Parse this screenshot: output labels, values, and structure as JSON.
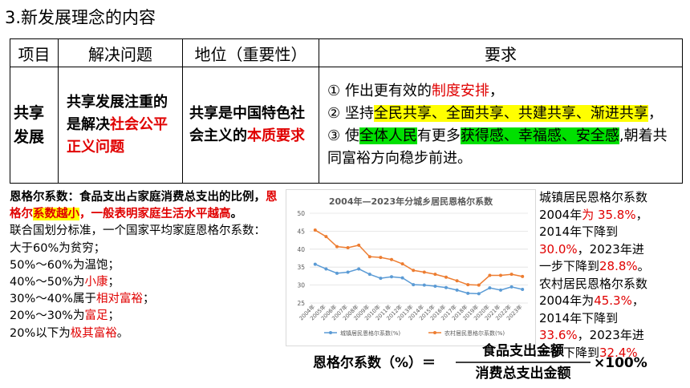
{
  "title": "3.新发展理念的内容",
  "table": {
    "headers": [
      "项目",
      "解决问题",
      "地位（重要性）",
      "要求"
    ],
    "row": {
      "item": "共享发展",
      "problem_prefix": "共享发展注重的是解决",
      "problem_red": "社会公平正义问题",
      "status_prefix": "共享是中国特色社会主义的",
      "status_red": "本质要求",
      "req1_num": "①",
      "req1_a": "作出更有效的",
      "req1_red": "制度安排",
      "req1_b": "，",
      "req2_num": "②",
      "req2_a": "坚持",
      "req2_hl": "全民共享、全面共享、共建共享、渐进共享",
      "req2_b": "，",
      "req3_num": "③",
      "req3_a": "使",
      "req3_hl1": "全体人民",
      "req3_b": "有更多",
      "req3_hl2": "获得感、幸福感、安全感",
      "req3_c": ",朝着共同富裕方向稳步前进。"
    }
  },
  "engel": {
    "def_a": "恩格尔系数：食品支出占家庭消费总支出的比例，",
    "def_red1": "恩格尔",
    "def_hl": "系数越小",
    "def_red2": "，一般表明家庭生活水平越高",
    "def_end": "。",
    "std": "联合国划分标准，一个国家平均家庭恩格尔系数：",
    "l1": "大于60%为贫穷；",
    "l2": "50%～60%为温饱；",
    "l3a": "40%～50%为",
    "l3r": "小康",
    "l3b": "；",
    "l4a": "30%～40%属于",
    "l4r": "相对富裕",
    "l4b": "；",
    "l5a": "20%～30%为",
    "l5r": "富足",
    "l5b": "；",
    "l6a": "20%以下为",
    "l6r": "极其富裕",
    "l6b": "。"
  },
  "right": {
    "u1": "城镇居民恩格尔系数",
    "u2a": "2004年",
    "u2r": "为 35.8%",
    "u2b": "，",
    "u3": "2014年下降到",
    "u4r": "30.0%",
    "u4b": "，2023年进",
    "u5a": "一步下降到",
    "u5r": "28.8%",
    "u5b": "。",
    "r1": "农村居民恩格尔系数",
    "r2a": "2004年为",
    "r2r": "45.3%",
    "r2b": "，",
    "r3": "2014年下降到",
    "r4r": "33.6%",
    "r4b": "，2023年进",
    "r5a": "一步下降到",
    "r5r": "32.4%"
  },
  "formula": {
    "lhs": "恩格尔系数（%）＝",
    "num": "食品支出金额",
    "den": "消费总支出金额",
    "rhs": "×100%"
  },
  "chart_data": {
    "type": "line",
    "title": "2004年—2023年分城乡居民恩格尔系数",
    "x": [
      "2004年",
      "2005年",
      "2006年",
      "2007年",
      "2008年",
      "2009年",
      "2010年",
      "2011年",
      "2012年",
      "2013年",
      "2014年",
      "2015年",
      "2016年",
      "2017年",
      "2018年",
      "2019年",
      "2020年",
      "2021年",
      "2022年",
      "2023年"
    ],
    "series": [
      {
        "name": "城镇居民恩格尔系数(%)",
        "color": "#5b9bd5",
        "values": [
          35.8,
          34.5,
          33.3,
          33.6,
          34.5,
          33.0,
          31.9,
          32.3,
          32.0,
          30.1,
          30.0,
          29.7,
          29.3,
          28.6,
          27.7,
          27.6,
          29.2,
          28.6,
          29.5,
          28.8
        ]
      },
      {
        "name": "农村居民恩格尔系数(%)",
        "color": "#ed7d31",
        "values": [
          45.3,
          43.5,
          40.7,
          40.4,
          41.1,
          37.9,
          37.7,
          37.1,
          35.9,
          34.1,
          33.6,
          33.0,
          32.2,
          31.2,
          30.1,
          30.0,
          32.7,
          32.7,
          33.0,
          32.4
        ]
      }
    ],
    "yticks": [
      25,
      30,
      35,
      40,
      45,
      50
    ],
    "ylim": [
      25,
      50
    ],
    "grid": true,
    "legend": "bottom"
  }
}
